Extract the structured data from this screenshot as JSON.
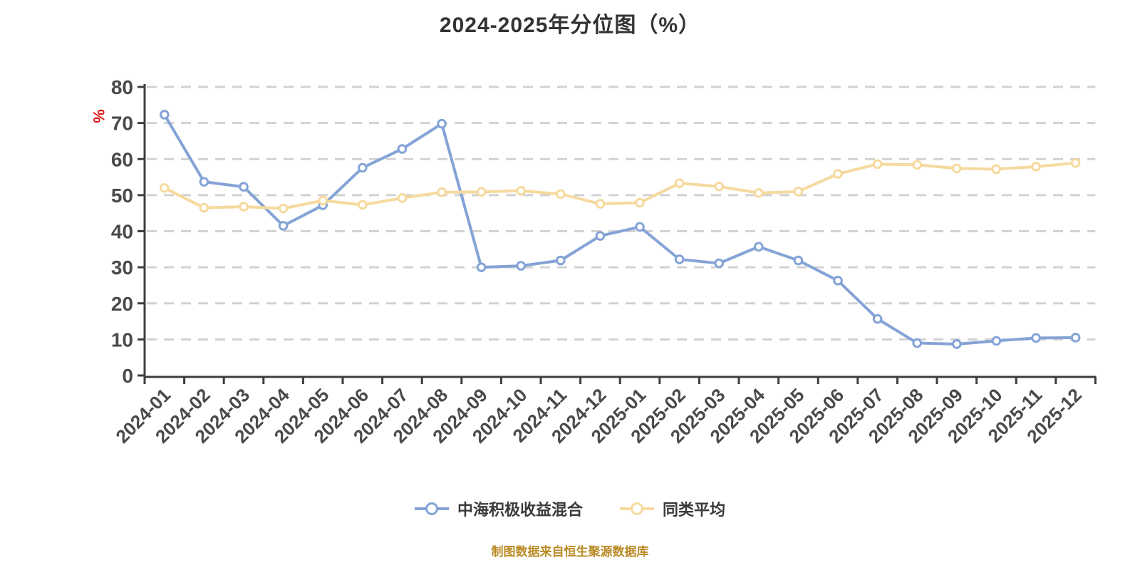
{
  "title": "2024-2025年分位图（%）",
  "y_axis_unit": "%",
  "caption": "制图数据来自恒生聚源数据库",
  "colors": {
    "series_fund": "#84a3d6",
    "series_average": "#f6d99e",
    "grid": "#d2d2d2",
    "axis": "#3e3e3e",
    "tick_label": "#4a4a4a",
    "title_text": "#333333",
    "unit_label": "#e21b1b",
    "caption_text": "#ba8b25",
    "marker_fill": "#ffffff"
  },
  "chart_data": {
    "type": "line",
    "title": "2024-2025年分位图（%）",
    "categories": [
      "2024-01",
      "2024-02",
      "2024-03",
      "2024-04",
      "2024-05",
      "2024-06",
      "2024-07",
      "2024-08",
      "2024-09",
      "2024-10",
      "2024-11",
      "2024-12",
      "2025-01",
      "2025-02",
      "2025-03",
      "2025-04",
      "2025-05",
      "2025-06",
      "2025-07",
      "2025-08",
      "2025-09",
      "2025-10",
      "2025-11",
      "2025-12"
    ],
    "series": [
      {
        "name": "中海积极收益混合",
        "color": "#84a3d6",
        "values": [
          72.3,
          53.7,
          52.3,
          41.5,
          47.2,
          57.6,
          62.8,
          69.8,
          30.0,
          30.4,
          31.9,
          38.7,
          41.2,
          32.2,
          31.1,
          35.7,
          31.9,
          26.3,
          15.7,
          9.0,
          8.7,
          9.6,
          10.4,
          10.5
        ]
      },
      {
        "name": "同类平均",
        "color": "#f6d99e",
        "values": [
          52.0,
          46.5,
          46.8,
          46.3,
          48.5,
          47.3,
          49.2,
          50.8,
          50.9,
          51.2,
          50.3,
          47.6,
          47.9,
          53.3,
          52.4,
          50.6,
          51.0,
          55.9,
          58.6,
          58.4,
          57.4,
          57.2,
          57.9,
          58.9
        ]
      }
    ],
    "xlabel": "",
    "ylabel": "%",
    "ylim": [
      0,
      80
    ],
    "y_ticks": [
      0,
      10,
      20,
      30,
      40,
      50,
      60,
      70,
      80
    ],
    "grid": "horizontal-dashed",
    "legend_position": "bottom",
    "marker": "circle"
  }
}
